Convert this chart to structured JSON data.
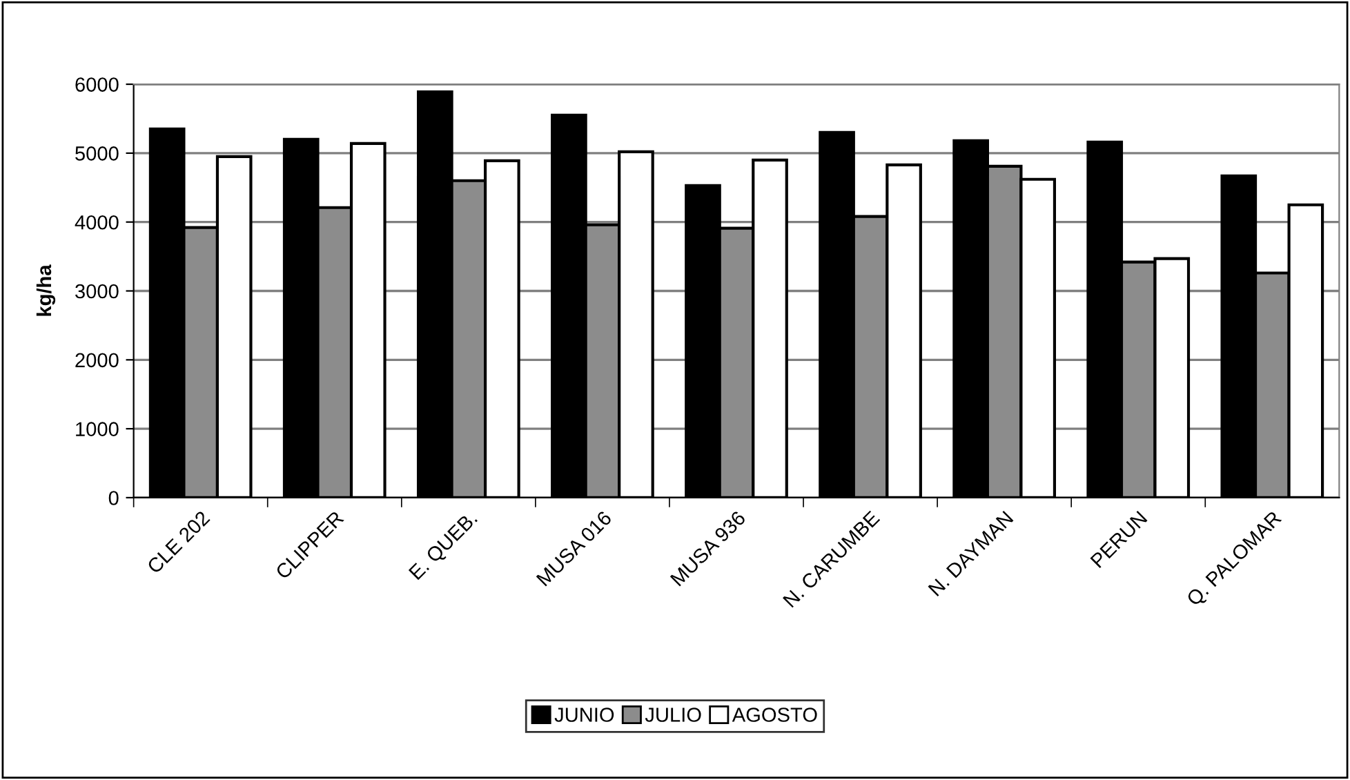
{
  "chart_data": {
    "type": "bar",
    "ylabel": "kg/ha",
    "categories": [
      "CLE 202",
      "CLIPPER",
      "E. QUEB.",
      "MUSA 016",
      "MUSA 936",
      "N. CARUMBE",
      "N. DAYMAN",
      "PERUN",
      "Q. PALOMAR"
    ],
    "series": [
      {
        "name": "JUNIO",
        "color": "#000000",
        "values": [
          5350,
          5200,
          5890,
          5550,
          4530,
          5300,
          5180,
          5160,
          4670
        ]
      },
      {
        "name": "JULIO",
        "color": "#8c8c8c",
        "values": [
          3920,
          4210,
          4600,
          3960,
          3910,
          4080,
          4810,
          3420,
          3260
        ]
      },
      {
        "name": "AGOSTO",
        "color": "#ffffff",
        "values": [
          4950,
          5140,
          4890,
          5020,
          4900,
          4830,
          4620,
          3470,
          4250
        ]
      }
    ],
    "ylim": [
      0,
      6000
    ],
    "yticks": [
      0,
      1000,
      2000,
      3000,
      4000,
      5000,
      6000
    ],
    "grid": "y",
    "legend": "bottom"
  }
}
